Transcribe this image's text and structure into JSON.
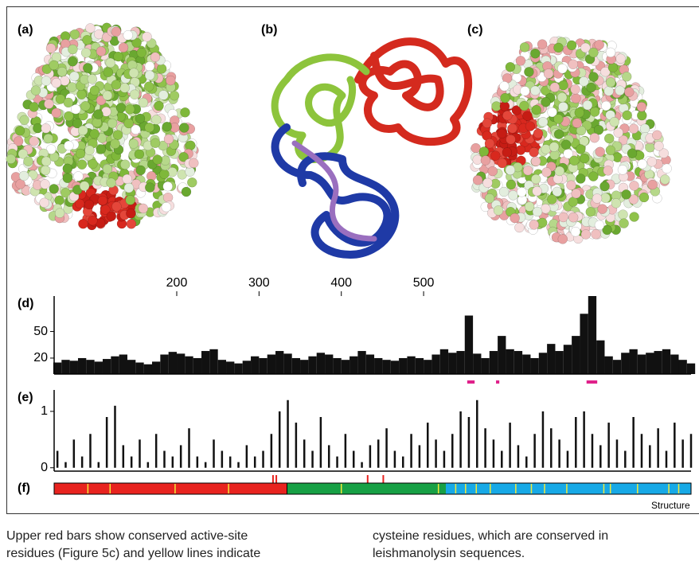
{
  "panel_labels": [
    "(a)",
    "(b)",
    "(c)"
  ],
  "chart_data": [
    {
      "type": "bar",
      "label": "(d)",
      "xlim": [
        51,
        825
      ],
      "xticks": [
        200,
        300,
        400,
        500
      ],
      "ylim": [
        2,
        90
      ],
      "yticks": [
        20,
        50
      ],
      "color": "#111111",
      "x": [
        55,
        65,
        75,
        85,
        95,
        105,
        115,
        125,
        135,
        145,
        155,
        165,
        175,
        185,
        195,
        205,
        215,
        225,
        235,
        245,
        255,
        265,
        275,
        285,
        295,
        305,
        315,
        325,
        335,
        345,
        355,
        365,
        375,
        385,
        395,
        405,
        415,
        425,
        435,
        445,
        455,
        465,
        475,
        485,
        495,
        505,
        515,
        525,
        535,
        545,
        555,
        565,
        575,
        585,
        595,
        605,
        615,
        625,
        635,
        645,
        655,
        665,
        675,
        685,
        695,
        705,
        715,
        725,
        735,
        745,
        755,
        765,
        775,
        785,
        795,
        805,
        815,
        825
      ],
      "values": [
        15,
        18,
        17,
        20,
        18,
        16,
        19,
        22,
        24,
        18,
        15,
        13,
        16,
        24,
        27,
        25,
        22,
        20,
        28,
        30,
        18,
        16,
        14,
        17,
        22,
        20,
        24,
        28,
        25,
        20,
        18,
        22,
        26,
        24,
        20,
        18,
        22,
        28,
        24,
        20,
        18,
        17,
        20,
        22,
        20,
        18,
        24,
        30,
        26,
        28,
        68,
        25,
        20,
        28,
        45,
        30,
        28,
        24,
        20,
        26,
        36,
        28,
        35,
        45,
        70,
        90,
        40,
        22,
        18,
        26,
        30,
        24,
        26,
        28,
        30,
        24,
        18,
        14
      ],
      "highlights": [
        [
          553,
          562
        ],
        [
          588,
          592
        ],
        [
          698,
          711
        ]
      ],
      "highlight_color": "#e0208a"
    },
    {
      "type": "bar",
      "label": "(e)",
      "xlim": [
        51,
        825
      ],
      "ylim": [
        -0.06,
        1.38
      ],
      "yticks": [
        0,
        1
      ],
      "color": "#111111",
      "x": [
        55,
        65,
        75,
        85,
        95,
        105,
        115,
        125,
        135,
        145,
        155,
        165,
        175,
        185,
        195,
        205,
        215,
        225,
        235,
        245,
        255,
        265,
        275,
        285,
        295,
        305,
        315,
        325,
        335,
        345,
        355,
        365,
        375,
        385,
        395,
        405,
        415,
        425,
        435,
        445,
        455,
        465,
        475,
        485,
        495,
        505,
        515,
        525,
        535,
        545,
        555,
        565,
        575,
        585,
        595,
        605,
        615,
        625,
        635,
        645,
        655,
        665,
        675,
        685,
        695,
        705,
        715,
        725,
        735,
        745,
        755,
        765,
        775,
        785,
        795,
        805,
        815,
        825
      ],
      "values": [
        0.3,
        0.1,
        0.5,
        0.2,
        0.6,
        0.1,
        0.9,
        1.1,
        0.4,
        0.2,
        0.5,
        0.1,
        0.6,
        0.3,
        0.2,
        0.4,
        0.7,
        0.2,
        0.1,
        0.5,
        0.3,
        0.2,
        0.1,
        0.4,
        0.2,
        0.3,
        0.6,
        1.0,
        1.2,
        0.8,
        0.5,
        0.3,
        0.9,
        0.4,
        0.2,
        0.6,
        0.3,
        0.1,
        0.4,
        0.5,
        0.7,
        0.3,
        0.2,
        0.6,
        0.4,
        0.8,
        0.5,
        0.3,
        0.6,
        1.0,
        0.9,
        1.2,
        0.7,
        0.5,
        0.3,
        0.8,
        0.4,
        0.2,
        0.6,
        1.0,
        0.7,
        0.5,
        0.3,
        0.9,
        1.0,
        0.6,
        0.4,
        0.8,
        0.5,
        0.3,
        0.9,
        0.6,
        0.4,
        0.7,
        0.3,
        0.8,
        0.5,
        0.6
      ]
    },
    {
      "type": "track",
      "label": "(f)",
      "xlim": [
        51,
        825
      ],
      "domains": [
        {
          "start": 51,
          "end": 334,
          "color": "#e8231f"
        },
        {
          "start": 334,
          "end": 527,
          "color": "#17a045"
        },
        {
          "start": 527,
          "end": 825,
          "color": "#17a9e6"
        }
      ],
      "yellow_lines": [
        92,
        119,
        198,
        263,
        400,
        518,
        539,
        551,
        564,
        581,
        612,
        631,
        647,
        674,
        719,
        727,
        760,
        798,
        810
      ],
      "line_color": "#f2e93a",
      "active_sites": [
        317,
        321,
        432,
        451
      ],
      "site_color": "#e8231f"
    }
  ],
  "footer": "Structure",
  "caption": {
    "left": [
      "Upper red bars show conserved active-site",
      "residues (Figure 5c) and yellow lines indicate"
    ],
    "right": [
      "cysteine residues, which are conserved in",
      "leishmanolysin sequences."
    ]
  }
}
